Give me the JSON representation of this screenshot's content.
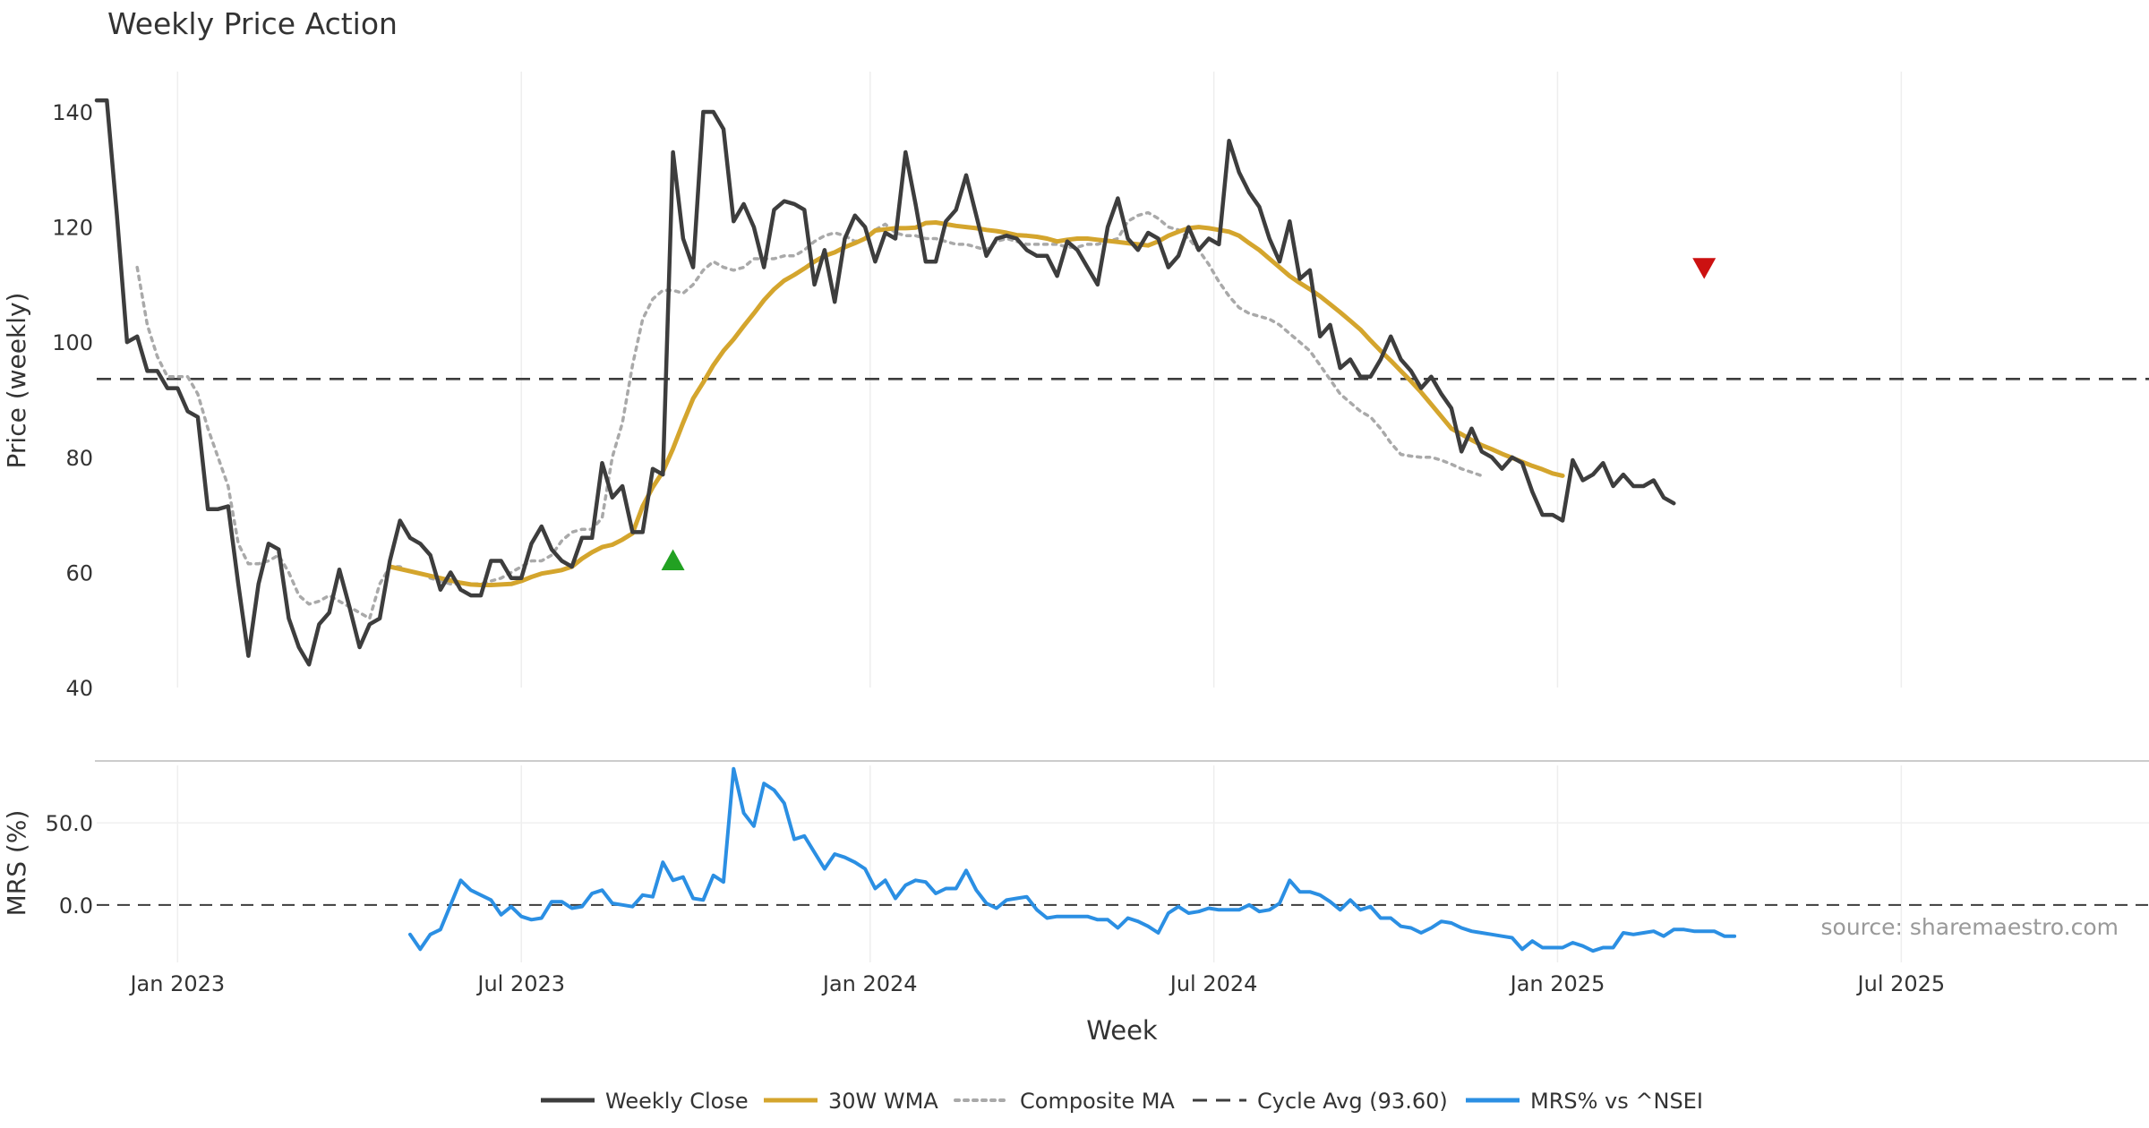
{
  "chart_data": {
    "type": "line",
    "title": "Weekly Price Action",
    "xlabel": "Week",
    "source": "source: sharemaestro.com",
    "x_ticks": [
      "Jan 2023",
      "Jul 2023",
      "Jan 2024",
      "Jul 2024",
      "Jan 2025",
      "Jul 2025"
    ],
    "x_tick_weeks": [
      8,
      42,
      76.5,
      110.5,
      144.5,
      178.5
    ],
    "x_range": [
      0,
      203
    ],
    "price_panel": {
      "ylabel": "Price (weekly)",
      "ylim": [
        40,
        147
      ],
      "y_ticks": [
        40,
        60,
        80,
        100,
        120,
        140
      ],
      "cycle_avg": 93.6,
      "signals": [
        {
          "type": "buy",
          "week": 57,
          "value": 62
        },
        {
          "type": "sell",
          "week": 159,
          "value": 113
        }
      ]
    },
    "mrs_panel": {
      "ylabel": "MRS (%)",
      "ylim": [
        -35,
        85
      ],
      "y_ticks": [
        0,
        50
      ],
      "y_tick_labels": [
        "0.0",
        "50.0"
      ],
      "zero_line": 0
    },
    "legend": [
      {
        "label": "Weekly Close",
        "color": "#3d3d3d",
        "style": "solid"
      },
      {
        "label": "30W WMA",
        "color": "#d4a52d",
        "style": "solid"
      },
      {
        "label": "Composite MA",
        "color": "#a9a9a9",
        "style": "dotted"
      },
      {
        "label": "Cycle Avg (93.60)",
        "color": "#3d3d3d",
        "style": "dashed"
      },
      {
        "label": "MRS% vs ^NSEI",
        "color": "#2b8fe3",
        "style": "solid"
      }
    ],
    "series": [
      {
        "name": "Weekly Close",
        "color": "#3d3d3d",
        "start_week": 0,
        "values": [
          142,
          142,
          122,
          100,
          101,
          95,
          95,
          92,
          92,
          88,
          87,
          71,
          71,
          71.5,
          58,
          45.5,
          58,
          65,
          64,
          52,
          47,
          44,
          51,
          53,
          60.5,
          54,
          47,
          51,
          52,
          62,
          69,
          66,
          65,
          63,
          57,
          60,
          57,
          56,
          56,
          62,
          62,
          59,
          59,
          65,
          68,
          64,
          62,
          61,
          66,
          66,
          79,
          73,
          75,
          67,
          67,
          78,
          77,
          133,
          118,
          113,
          140,
          140,
          137,
          121,
          124,
          120,
          113,
          123,
          124.5,
          124,
          123,
          110,
          116,
          107,
          118,
          122,
          120,
          114,
          119,
          118,
          133,
          124,
          114,
          114,
          121,
          123,
          129,
          122,
          115,
          118,
          118.5,
          118,
          116,
          115,
          115,
          111.5,
          117.5,
          116,
          113,
          110,
          120,
          125,
          118,
          116,
          119,
          118,
          113,
          115,
          120,
          116,
          118,
          117,
          135,
          129.5,
          126,
          123.5,
          118,
          114,
          121,
          111,
          112.5,
          101,
          103,
          95.5,
          97,
          94,
          94,
          97,
          101,
          97,
          95,
          92,
          94,
          91,
          88.5,
          81,
          85,
          81,
          80,
          78,
          80,
          79,
          74,
          70,
          70,
          69,
          79.5,
          76,
          77,
          79,
          75,
          77,
          75,
          75,
          76,
          73,
          72
        ]
      },
      {
        "name": "30W WMA",
        "color": "#d4a52d",
        "start_week": 29,
        "values": [
          61,
          60.6,
          60.2,
          59.8,
          59.4,
          59,
          58.6,
          58.2,
          57.9,
          57.8,
          57.8,
          57.9,
          58,
          58.5,
          59.2,
          59.8,
          60.1,
          60.4,
          61,
          62.4,
          63.5,
          64.4,
          64.8,
          65.7,
          66.8,
          71.5,
          74.8,
          77.5,
          81.5,
          86,
          90.2,
          93,
          96,
          98.5,
          100.5,
          102.8,
          105,
          107.3,
          109.2,
          110.7,
          111.7,
          112.8,
          114,
          115,
          115.6,
          116.5,
          117.2,
          118,
          119.4,
          119.6,
          119.8,
          119.8,
          119.9,
          120.7,
          120.8,
          120.5,
          120.2,
          120,
          119.8,
          119.5,
          119.3,
          119,
          118.6,
          118.5,
          118.3,
          118,
          117.5,
          117.8,
          118,
          118,
          117.8,
          117.6,
          117.4,
          117.2,
          117,
          116.8,
          117.5,
          118.5,
          119.2,
          119.8,
          120,
          119.8,
          119.5,
          119.2,
          118.5,
          117.2,
          116,
          114.5,
          113,
          111.5,
          110.3,
          109.2,
          108,
          106.6,
          105.2,
          103.7,
          102.2,
          100.3,
          98.5,
          96.8,
          95,
          93.2,
          91.3,
          89.2,
          87.1,
          85,
          84,
          83,
          82.1,
          81.4,
          80.6,
          79.9,
          79.2,
          78.5,
          77.9,
          77.2,
          76.8
        ]
      },
      {
        "name": "Composite MA",
        "color": "#a9a9a9",
        "start_week": 4,
        "values": [
          113,
          103,
          97.5,
          94,
          94,
          94,
          91,
          85,
          80,
          75,
          65,
          61.5,
          61.5,
          62,
          63,
          60,
          56,
          54.5,
          55,
          56,
          55,
          54,
          53,
          52,
          58,
          61,
          61,
          60,
          60,
          59,
          58.5,
          58,
          58,
          58,
          58,
          58.5,
          59,
          60,
          61,
          62,
          62,
          63,
          65.5,
          67,
          67.5,
          67.5,
          69.5,
          80,
          86,
          96,
          104,
          107.5,
          109,
          109,
          108.5,
          110,
          112.5,
          114,
          113,
          112.5,
          113,
          114.5,
          114.5,
          114.5,
          115,
          115,
          116,
          117.5,
          118.5,
          119,
          118.5,
          117.5,
          118,
          119.5,
          120.5,
          119,
          118.5,
          118.5,
          118,
          118,
          117.5,
          117,
          117,
          116.5,
          116,
          117.5,
          118,
          117.5,
          117,
          117,
          117,
          117,
          116.5,
          116.5,
          117,
          117,
          117.5,
          118,
          121,
          122,
          122.5,
          121.5,
          120,
          119.5,
          118,
          116,
          113.5,
          110.5,
          108,
          106,
          105,
          104.5,
          104,
          103,
          101.5,
          100,
          98.5,
          96,
          93.5,
          91,
          89.5,
          88,
          87,
          85,
          82.5,
          80.5,
          80.2,
          80,
          80,
          79.5,
          78.8,
          78,
          77.4,
          76.8
        ]
      },
      {
        "name": "MRS% vs ^NSEI",
        "color": "#2b8fe3",
        "panel": "mrs",
        "start_week": 31,
        "values": [
          -18,
          -27,
          -18,
          -15,
          0,
          15,
          9,
          6,
          3,
          -6,
          -1,
          -7,
          -9,
          -8,
          2,
          2,
          -2,
          -1,
          7,
          9,
          1,
          0,
          -1,
          6,
          5,
          26,
          15,
          17,
          4,
          3,
          18,
          14,
          83,
          56,
          48,
          74,
          70,
          62,
          40,
          42,
          32,
          22,
          31,
          29,
          26,
          22,
          10,
          15,
          4,
          12,
          15,
          14,
          7,
          10,
          10,
          21,
          9,
          1,
          -2,
          3,
          4,
          5,
          -3,
          -8,
          -7,
          -7,
          -7,
          -7,
          -9,
          -9,
          -14,
          -8,
          -10,
          -13,
          -17,
          -5,
          -1,
          -5,
          -4,
          -2,
          -3,
          -3,
          -3,
          0,
          -4,
          -3,
          1,
          15,
          8,
          8,
          6,
          2,
          -3,
          3,
          -3,
          -1,
          -8,
          -8,
          -13,
          -14,
          -17,
          -14,
          -10,
          -11,
          -14,
          -16,
          -17,
          -18,
          -19,
          -20,
          -27,
          -22,
          -26,
          -26,
          -26,
          -23,
          -25,
          -28,
          -26,
          -26,
          -17,
          -18,
          -17,
          -16,
          -19,
          -15,
          -15,
          -16,
          -16,
          -16,
          -19,
          -19
        ]
      }
    ]
  }
}
